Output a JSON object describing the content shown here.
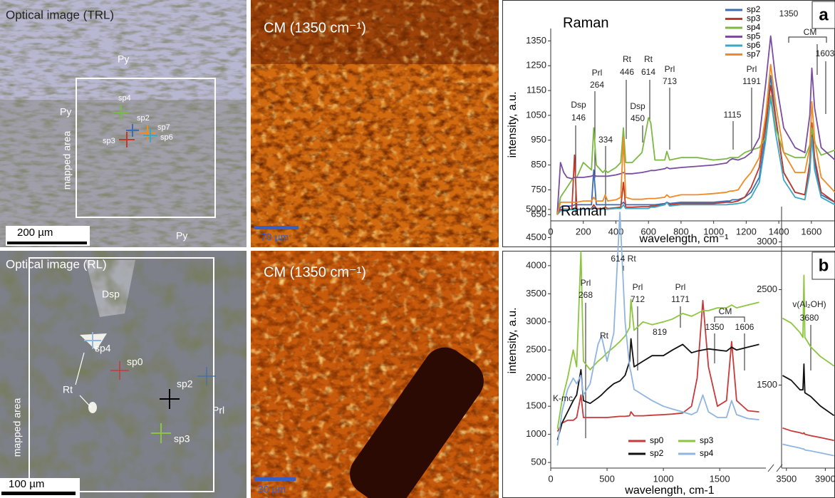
{
  "images": [
    {
      "title": "Optical image (TRL)",
      "labels": [
        "Py",
        "Py",
        "Py",
        "sp4",
        "sp2",
        "sp7",
        "sp3",
        "sp6",
        "mapped area"
      ],
      "scale_bar": "200 µm"
    },
    {
      "title": "CM (1350 cm⁻¹)",
      "scale_bar": "70 µm"
    },
    {
      "title": "Optical image (RL)",
      "labels": [
        "Dsp",
        "sp4",
        "Rt",
        "sp0",
        "sp2",
        "Prl",
        "sp3",
        "mapped area"
      ],
      "scale_bar": "100 µm"
    },
    {
      "title": "CM (1350 cm⁻¹)",
      "scale_bar": "30 µm"
    }
  ],
  "chart_data": [
    {
      "type": "line",
      "title": "Raman",
      "panel_label": "a",
      "xlabel": "wavelength, cm⁻¹",
      "ylabel": "intensity, a.u.",
      "x": [
        40,
        60,
        80,
        100,
        130,
        146,
        160,
        200,
        250,
        264,
        280,
        320,
        334,
        350,
        400,
        430,
        446,
        460,
        500,
        560,
        600,
        614,
        640,
        700,
        713,
        730,
        800,
        900,
        1000,
        1080,
        1100,
        1115,
        1150,
        1191,
        1230,
        1280,
        1320,
        1350,
        1380,
        1430,
        1500,
        1560,
        1590,
        1603,
        1620,
        1660,
        1745
      ],
      "series": [
        {
          "name": "sp2",
          "color": "#3b6db3",
          "values": [
            650,
            680,
            685,
            685,
            685,
            690,
            690,
            690,
            690,
            830,
            690,
            690,
            690,
            690,
            690,
            690,
            700,
            690,
            690,
            690,
            690,
            690,
            690,
            695,
            700,
            695,
            700,
            700,
            700,
            705,
            705,
            710,
            710,
            720,
            740,
            800,
            980,
            1210,
            1050,
            820,
            740,
            730,
            820,
            970,
            860,
            730,
            700
          ]
        },
        {
          "name": "sp3",
          "color": "#c0392b",
          "values": [
            650,
            670,
            672,
            672,
            672,
            890,
            672,
            672,
            675,
            690,
            675,
            675,
            680,
            675,
            678,
            680,
            780,
            680,
            680,
            682,
            682,
            685,
            685,
            690,
            700,
            690,
            695,
            695,
            695,
            700,
            700,
            700,
            705,
            720,
            760,
            840,
            1020,
            1170,
            1040,
            820,
            740,
            730,
            860,
            1020,
            880,
            740,
            700
          ]
        },
        {
          "name": "sp4",
          "color": "#7db843",
          "values": [
            650,
            720,
            740,
            760,
            790,
            800,
            800,
            860,
            830,
            1000,
            850,
            820,
            830,
            820,
            840,
            860,
            1000,
            860,
            860,
            900,
            1040,
            1020,
            870,
            870,
            905,
            870,
            880,
            880,
            870,
            875,
            880,
            880,
            880,
            900,
            910,
            920,
            960,
            1130,
            1000,
            900,
            880,
            880,
            930,
            1000,
            940,
            890,
            910
          ]
        },
        {
          "name": "sp5",
          "color": "#7a4d9e",
          "values": [
            650,
            860,
            820,
            800,
            795,
            800,
            800,
            800,
            805,
            810,
            805,
            805,
            805,
            805,
            810,
            815,
            820,
            815,
            815,
            820,
            825,
            828,
            828,
            835,
            840,
            835,
            840,
            845,
            850,
            858,
            870,
            875,
            870,
            880,
            900,
            960,
            1180,
            1370,
            1200,
            1000,
            920,
            900,
            1050,
            1240,
            1080,
            920,
            870
          ]
        },
        {
          "name": "sp6",
          "color": "#3ba7c4",
          "values": [
            650,
            665,
            670,
            670,
            670,
            670,
            670,
            672,
            672,
            680,
            672,
            672,
            672,
            672,
            675,
            675,
            690,
            675,
            675,
            675,
            675,
            680,
            680,
            690,
            700,
            685,
            690,
            690,
            690,
            690,
            692,
            692,
            695,
            700,
            720,
            780,
            950,
            1120,
            980,
            790,
            720,
            710,
            820,
            960,
            830,
            720,
            690
          ]
        },
        {
          "name": "sp7",
          "color": "#f08a24",
          "values": [
            650,
            700,
            700,
            700,
            700,
            700,
            700,
            705,
            705,
            720,
            705,
            705,
            730,
            705,
            710,
            720,
            960,
            720,
            712,
            712,
            715,
            715,
            715,
            720,
            730,
            720,
            730,
            730,
            735,
            740,
            745,
            745,
            750,
            790,
            820,
            880,
            1050,
            1255,
            1100,
            900,
            820,
            820,
            920,
            1105,
            950,
            800,
            740
          ]
        }
      ],
      "xlim": [
        0,
        1745
      ],
      "ylim": [
        625,
        1400
      ],
      "xticks": [
        0,
        200,
        400,
        600,
        800,
        1000,
        1200,
        1400,
        1600
      ],
      "yticks": [
        650,
        750,
        850,
        950,
        1050,
        1150,
        1250,
        1350
      ],
      "annotations": [
        {
          "lines": [
            "Dsp",
            "146"
          ]
        },
        {
          "lines": [
            "Prl",
            "264"
          ]
        },
        {
          "lines": [
            "334"
          ]
        },
        {
          "lines": [
            "Rt",
            "446"
          ]
        },
        {
          "lines": [
            "Dsp",
            "450"
          ]
        },
        {
          "lines": [
            "Rt",
            "614"
          ]
        },
        {
          "lines": [
            "Prl",
            "713"
          ]
        },
        {
          "lines": [
            "1115"
          ]
        },
        {
          "lines": [
            "Prl",
            "1191"
          ]
        },
        {
          "lines": [
            "1350"
          ]
        },
        {
          "lines": [
            "CM"
          ]
        },
        {
          "lines": [
            "1603"
          ]
        }
      ]
    },
    {
      "type": "line",
      "title": "Raman",
      "panel_label": "b",
      "xlabel": "wavelength, cm-1",
      "ylabel": "intensity, a.u.",
      "x": [
        60,
        100,
        150,
        200,
        230,
        268,
        290,
        350,
        420,
        450,
        500,
        560,
        614,
        660,
        700,
        712,
        740,
        819,
        900,
        1000,
        1080,
        1171,
        1250,
        1300,
        1350,
        1400,
        1480,
        1560,
        1606,
        1650,
        1750,
        1850
      ],
      "series": [
        {
          "name": "sp0",
          "color": "#c8393a",
          "values": [
            1050,
            1200,
            1250,
            1250,
            1300,
            1700,
            1300,
            1300,
            1300,
            1300,
            1300,
            1310,
            1320,
            1320,
            1330,
            1400,
            1330,
            1330,
            1340,
            1350,
            1360,
            1380,
            1500,
            2000,
            3380,
            2200,
            1500,
            1600,
            2650,
            1600,
            1420,
            1400
          ]
        },
        {
          "name": "sp2",
          "color": "#111111",
          "values": [
            900,
            1200,
            1400,
            1600,
            1700,
            2150,
            1600,
            1550,
            1650,
            1700,
            1800,
            1900,
            1950,
            2050,
            2300,
            2700,
            2200,
            2300,
            2400,
            2400,
            2500,
            2600,
            2450,
            2480,
            2500,
            2520,
            2500,
            2480,
            2550,
            2500,
            2550,
            2600
          ]
        },
        {
          "name": "sp3",
          "color": "#8cc63f",
          "values": [
            1100,
            1600,
            2000,
            2500,
            2200,
            4250,
            2300,
            2150,
            2300,
            2350,
            2450,
            2550,
            2650,
            2750,
            2900,
            3400,
            2850,
            3000,
            2950,
            3000,
            3050,
            3150,
            3100,
            3150,
            3200,
            3200,
            3250,
            3250,
            3300,
            3250,
            3300,
            3350
          ]
        },
        {
          "name": "sp4",
          "color": "#8fb5e0",
          "values": [
            800,
            1400,
            1800,
            2000,
            1900,
            2050,
            1700,
            1900,
            2600,
            2750,
            2300,
            2800,
            4950,
            3000,
            2200,
            2100,
            1800,
            1700,
            1600,
            1500,
            1450,
            1400,
            1350,
            1400,
            1700,
            1400,
            1300,
            1300,
            1600,
            1350,
            1280,
            1260
          ]
        }
      ],
      "xlim": [
        0,
        1910
      ],
      "ylim": [
        400,
        5050
      ],
      "xticks": [
        0,
        500,
        1000,
        1500
      ],
      "yticks": [
        500,
        1000,
        1500,
        2000,
        2500,
        3000,
        3500,
        4000,
        4500,
        5000
      ],
      "annotations": [
        {
          "lines": [
            "K-mc"
          ]
        },
        {
          "lines": [
            "Prl",
            "268"
          ]
        },
        {
          "lines": [
            "614 Rt"
          ]
        },
        {
          "lines": [
            "Rt"
          ]
        },
        {
          "lines": [
            "Prl",
            "712"
          ]
        },
        {
          "lines": [
            "819"
          ]
        },
        {
          "lines": [
            "Prl",
            "1171"
          ]
        },
        {
          "lines": [
            "CM"
          ]
        },
        {
          "lines": [
            "1350"
          ]
        },
        {
          "lines": [
            "1606"
          ]
        }
      ]
    },
    {
      "type": "line",
      "x": [
        3460,
        3550,
        3640,
        3670,
        3680,
        3690,
        3750,
        3850,
        3990
      ],
      "series": [
        {
          "color": "#c8393a",
          "values": [
            1050,
            1020,
            1000,
            990,
            1000,
            985,
            970,
            950,
            920
          ]
        },
        {
          "color": "#111111",
          "values": [
            1600,
            1550,
            1450,
            1450,
            1720,
            1420,
            1380,
            1280,
            1180
          ]
        },
        {
          "color": "#8cc63f",
          "values": [
            2200,
            2150,
            2050,
            2000,
            2650,
            2000,
            1900,
            1800,
            1700
          ]
        },
        {
          "color": "#8fb5e0",
          "values": [
            880,
            860,
            840,
            830,
            830,
            820,
            810,
            790,
            760
          ]
        }
      ],
      "xlim": [
        3450,
        4000
      ],
      "ylim": [
        630,
        3370
      ],
      "xticks": [
        3500,
        3900
      ],
      "yticks": [
        1500,
        2500,
        3000
      ],
      "annotations": [
        {
          "lines": [
            "v(Al₂OH)",
            "3680"
          ]
        }
      ]
    }
  ]
}
